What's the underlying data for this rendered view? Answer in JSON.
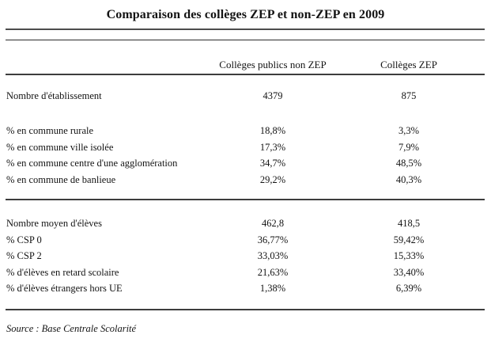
{
  "title": "Comparaison des collèges ZEP et non-ZEP en 2009",
  "colors": {
    "background": "#ffffff",
    "text": "#141414",
    "rule": "#3d3d3d"
  },
  "table": {
    "header": {
      "non_zep": "Collèges publics non ZEP",
      "zep": "Collèges ZEP"
    },
    "rows": [
      {
        "label": "Nombre d'établissement",
        "non_zep": "4379",
        "zep": "875"
      },
      {
        "label": "% en commune rurale",
        "non_zep": "18,8%",
        "zep": "3,3%"
      },
      {
        "label": "% en commune ville isolée",
        "non_zep": "17,3%",
        "zep": "7,9%"
      },
      {
        "label": "% en commune centre d'une agglomération",
        "non_zep": "34,7%",
        "zep": "48,5%"
      },
      {
        "label": "% en commune de banlieue",
        "non_zep": "29,2%",
        "zep": "40,3%"
      },
      {
        "label": "Nombre moyen d'élèves",
        "non_zep": "462,8",
        "zep": "418,5"
      },
      {
        "label": "% CSP 0",
        "non_zep": "36,77%",
        "zep": "59,42%"
      },
      {
        "label": "% CSP 2",
        "non_zep": "33,03%",
        "zep": "15,33%"
      },
      {
        "label": "% d'élèves en retard scolaire",
        "non_zep": "21,63%",
        "zep": "33,40%"
      },
      {
        "label": "% d'élèves étrangers hors UE",
        "non_zep": "1,38%",
        "zep": "6,39%"
      }
    ]
  },
  "source": "Source : Base Centrale Scolarité"
}
